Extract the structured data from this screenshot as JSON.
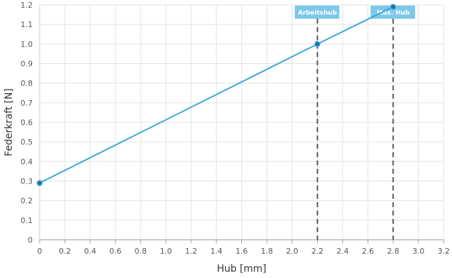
{
  "chart_data": {
    "type": "line",
    "title": "",
    "xlabel": "Hub [mm]",
    "ylabel": "Federkraft [N]",
    "xlim": [
      0,
      3.2
    ],
    "ylim": [
      0,
      1.2
    ],
    "x_ticks": [
      "0",
      "0.2",
      "0.4",
      "0.6",
      "0.8",
      "1.0",
      "1.2",
      "1.4",
      "1.6",
      "1.8",
      "2.0",
      "2.2",
      "2.4",
      "2.6",
      "2.8",
      "3.0",
      "3.2"
    ],
    "y_ticks": [
      "0",
      "0.1",
      "0.2",
      "0.3",
      "0.4",
      "0.5",
      "0.6",
      "0.7",
      "0.8",
      "0.9",
      "1.0",
      "1.1",
      "1.2"
    ],
    "grid": true,
    "series": [
      {
        "name": "",
        "color": "#3aa8d8",
        "x": [
          0,
          2.2,
          2.8
        ],
        "y": [
          0.29,
          1.0,
          1.19
        ]
      }
    ],
    "markers": [
      {
        "label": "Arbeitshub",
        "x": 2.2,
        "color": "#7ec8ea"
      },
      {
        "label": "Max. Hub",
        "x": 2.8,
        "color": "#7ec8ea"
      }
    ]
  }
}
